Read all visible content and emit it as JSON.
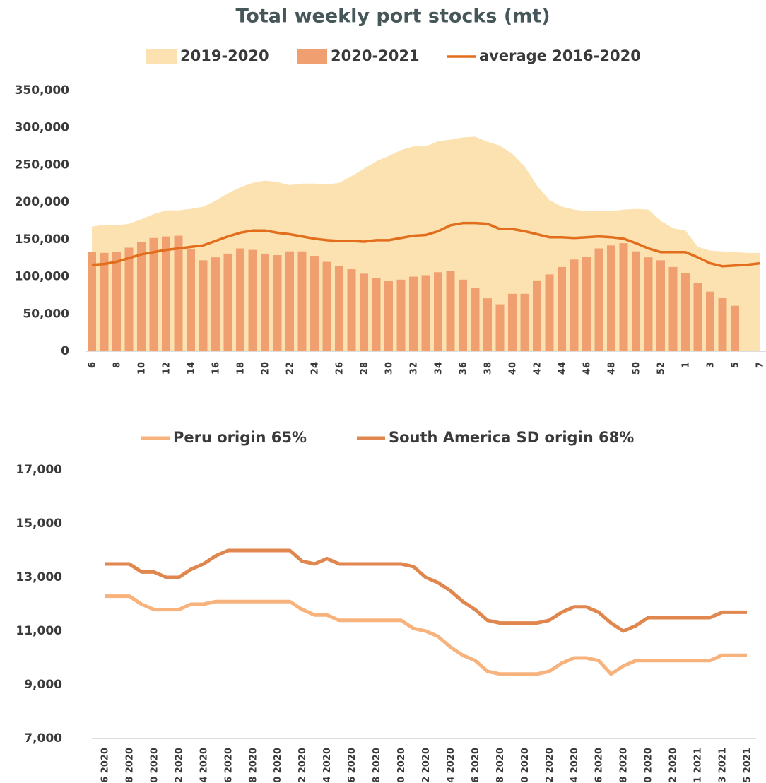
{
  "chart_data": [
    {
      "type": "combo",
      "title": "Total weekly port stocks (mt)",
      "categories": [
        "6",
        null,
        "8",
        null,
        "10",
        null,
        "12",
        null,
        "14",
        null,
        "16",
        null,
        "18",
        null,
        "20",
        null,
        "22",
        null,
        "24",
        null,
        "26",
        null,
        "28",
        null,
        "30",
        null,
        "32",
        null,
        "34",
        null,
        "36",
        null,
        "38",
        null,
        "40",
        null,
        "42",
        null,
        "44",
        null,
        "46",
        null,
        "48",
        null,
        "50",
        null,
        "52",
        null,
        "1",
        null,
        "3",
        null,
        "5",
        null,
        "7"
      ],
      "ylim": [
        0,
        350000
      ],
      "yticks": [
        0,
        {
          "value": 50000,
          "label": "50,000"
        },
        {
          "value": 100000,
          "label": "100,000"
        },
        {
          "value": 150000,
          "label": "150,000"
        },
        {
          "value": 200000,
          "label": "200,000"
        },
        {
          "value": 250000,
          "label": "250,000"
        },
        {
          "value": 300000,
          "label": "300,000"
        },
        {
          "value": 350000,
          "label": "350,000"
        }
      ],
      "grid": false,
      "series": [
        {
          "name": "2019-2020",
          "type": "area",
          "color": "#fbe2b0",
          "values": [
            167000,
            170000,
            169000,
            171000,
            177000,
            184000,
            189000,
            189000,
            191000,
            194000,
            202000,
            212000,
            220000,
            226000,
            229000,
            227000,
            223000,
            225000,
            225000,
            224000,
            226000,
            235000,
            245000,
            255000,
            262000,
            270000,
            275000,
            275000,
            282000,
            284000,
            287000,
            288000,
            281000,
            276000,
            265000,
            248000,
            222000,
            203000,
            194000,
            190000,
            188000,
            188000,
            188000,
            190000,
            191000,
            190000,
            175000,
            165000,
            162000,
            140000,
            135000,
            134000,
            133000,
            132000,
            132000
          ]
        },
        {
          "name": "2020-2021",
          "type": "bar",
          "color": "#f0a070",
          "values": [
            133000,
            132000,
            133000,
            139000,
            147000,
            152000,
            154000,
            155000,
            137000,
            122000,
            126000,
            131000,
            138000,
            136000,
            131000,
            129000,
            134000,
            134000,
            128000,
            120000,
            114000,
            110000,
            104000,
            98000,
            94000,
            96000,
            100000,
            102000,
            106000,
            108000,
            96000,
            85000,
            71000,
            63000,
            77000,
            77000,
            95000,
            103000,
            113000,
            123000,
            127000,
            138000,
            142000,
            145000,
            134000,
            126000,
            122000,
            113000,
            105000,
            92000,
            80000,
            72000,
            61000,
            null,
            null
          ]
        },
        {
          "name": "average 2016-2020",
          "type": "line",
          "color": "#e26d1c",
          "values": [
            116000,
            117000,
            120000,
            125000,
            130000,
            133000,
            136000,
            138000,
            140000,
            142000,
            148000,
            154000,
            159000,
            162000,
            162000,
            159000,
            157000,
            154000,
            151000,
            149000,
            148000,
            148000,
            147000,
            149000,
            149000,
            152000,
            155000,
            156000,
            161000,
            169000,
            172000,
            172000,
            171000,
            164000,
            164000,
            161000,
            157000,
            153000,
            153000,
            152000,
            153000,
            154000,
            153000,
            151000,
            145000,
            138000,
            133000,
            133000,
            133000,
            126000,
            118000,
            114000,
            115000,
            116000,
            118000
          ]
        }
      ]
    },
    {
      "type": "line",
      "categories": [
        "6 2020",
        null,
        "8 2020",
        null,
        "10 2020",
        null,
        "12 2020",
        null,
        "14 2020",
        null,
        "16 2020",
        null,
        "18 2020",
        null,
        "20 2020",
        null,
        "22 2020",
        null,
        "24 2020",
        null,
        "26 2020",
        null,
        "28 2020",
        null,
        "30 2020",
        null,
        "32 2020",
        null,
        "34 2020",
        null,
        "36 2020",
        null,
        "38 2020",
        null,
        "40 2020",
        null,
        "42 2020",
        null,
        "44 2020",
        null,
        "46 2020",
        null,
        "48 2020",
        null,
        "50 2020",
        null,
        "52 2020",
        null,
        "1 2021",
        null,
        "3 2021",
        null,
        "5 2021"
      ],
      "ylim": [
        7000,
        17000
      ],
      "yticks": [
        {
          "value": 7000,
          "label": "7,000"
        },
        {
          "value": 9000,
          "label": "9,000"
        },
        {
          "value": 11000,
          "label": "11,000"
        },
        {
          "value": 13000,
          "label": "13,000"
        },
        {
          "value": 15000,
          "label": "15,000"
        },
        {
          "value": 17000,
          "label": "17,000"
        }
      ],
      "grid": false,
      "series": [
        {
          "name": "Peru origin 65%",
          "color": "#f8b27c",
          "values": [
            12300,
            12300,
            12300,
            12000,
            11800,
            11800,
            11800,
            12000,
            12000,
            12100,
            12100,
            12100,
            12100,
            12100,
            12100,
            12100,
            11800,
            11600,
            11600,
            11400,
            11400,
            11400,
            11400,
            11400,
            11400,
            11100,
            11000,
            10800,
            10400,
            10100,
            9900,
            9500,
            9400,
            9400,
            9400,
            9400,
            9500,
            9800,
            10000,
            10000,
            9900,
            9400,
            9700,
            9900,
            9900,
            9900,
            9900,
            9900,
            9900,
            9900,
            10100,
            10100,
            10100
          ]
        },
        {
          "name": "South America SD origin 68%",
          "color": "#e0874f",
          "values": [
            13500,
            13500,
            13500,
            13200,
            13200,
            13000,
            13000,
            13300,
            13500,
            13800,
            14000,
            14000,
            14000,
            14000,
            14000,
            14000,
            13600,
            13500,
            13700,
            13500,
            13500,
            13500,
            13500,
            13500,
            13500,
            13400,
            13000,
            12800,
            12500,
            12100,
            11800,
            11400,
            11300,
            11300,
            11300,
            11300,
            11400,
            11700,
            11900,
            11900,
            11700,
            11300,
            11000,
            11200,
            11500,
            11500,
            11500,
            11500,
            11500,
            11500,
            11700,
            11700,
            11700
          ]
        }
      ]
    }
  ]
}
